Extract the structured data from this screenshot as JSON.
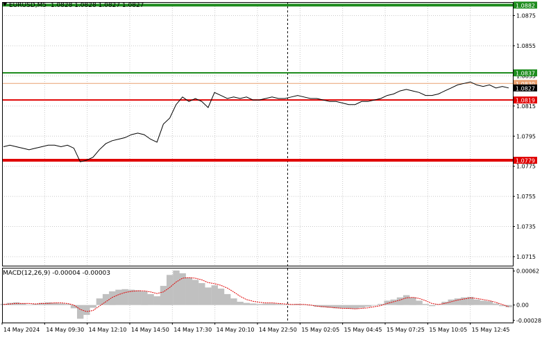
{
  "header": {
    "symbol": "EURUSD,M5",
    "ohlc": "1.0828 1.0828 1.0827 1.0827"
  },
  "macd": {
    "label": "MACD(12,26,9) -0.00004 -0.00003",
    "axis_labels": [
      "0.00062",
      "0.00",
      "-0.00028"
    ]
  },
  "colors": {
    "green_level": "#1e8c1e",
    "red_level": "#e00000",
    "orange_level": "#e8a070",
    "price_line": "#000000",
    "histogram": "#c0c0c0",
    "signal": "#e00000",
    "grid": "#c8c8c8"
  },
  "chart_data": [
    {
      "type": "line",
      "title": "",
      "x_tick_labels": [
        "14 May 2024",
        "14 May 09:30",
        "14 May 12:10",
        "14 May 14:50",
        "14 May 17:30",
        "14 May 20:10",
        "14 May 22:50",
        "15 May 02:05",
        "15 May 04:45",
        "15 May 07:25",
        "15 May 10:05",
        "15 May 12:45"
      ],
      "y_tick_labels": [
        "1.0875",
        "1.0855",
        "1.0835",
        "1.0815",
        "1.0795",
        "1.0775",
        "1.0755",
        "1.0735",
        "1.0715"
      ],
      "ylim": [
        1.0709,
        1.0884
      ],
      "grid": true,
      "levels": [
        {
          "value": 1.0882,
          "label": "1.0882",
          "color": "green"
        },
        {
          "value": 1.0837,
          "label": "1.0837",
          "color": "green"
        },
        {
          "value": 1.083,
          "label": "1.0830",
          "color": "orange"
        },
        {
          "value": 1.0819,
          "label": "1.0819",
          "color": "red"
        },
        {
          "value": 1.0779,
          "label": "1.0779",
          "color": "red"
        }
      ],
      "current_price": {
        "value": 1.0827,
        "label": "1.0827"
      },
      "series": [
        {
          "values": [
            1.0788,
            1.0789,
            1.0788,
            1.0787,
            1.0786,
            1.0787,
            1.0788,
            1.0789,
            1.0789,
            1.0788,
            1.0789,
            1.0787,
            1.0778,
            1.0779,
            1.0781,
            1.0786,
            1.079,
            1.0792,
            1.0793,
            1.0794,
            1.0796,
            1.0797,
            1.0796,
            1.0793,
            1.0791,
            1.0803,
            1.0807,
            1.0816,
            1.0821,
            1.0818,
            1.082,
            1.0818,
            1.0814,
            1.0824,
            1.0822,
            1.082,
            1.0821,
            1.082,
            1.0821,
            1.0819,
            1.0819,
            1.082,
            1.0821,
            1.082,
            1.082,
            1.0821,
            1.0822,
            1.0821,
            1.082,
            1.082,
            1.0819,
            1.0818,
            1.0818,
            1.0817,
            1.0816,
            1.0816,
            1.0818,
            1.0818,
            1.0819,
            1.082,
            1.0822,
            1.0823,
            1.0825,
            1.0826,
            1.0825,
            1.0824,
            1.0822,
            1.0822,
            1.0823,
            1.0825,
            1.0827,
            1.0829,
            1.083,
            1.0831,
            1.0829,
            1.0828,
            1.0829,
            1.0827,
            1.0828,
            1.0827
          ]
        }
      ]
    },
    {
      "type": "bar",
      "title": "MACD(12,26,9)",
      "y_tick_labels": [
        "0.00062",
        "0.00",
        "-0.00028"
      ],
      "ylim": [
        -0.00032,
        0.00068
      ],
      "series": [
        {
          "name": "MACD",
          "values": [
            2e-05,
            4e-05,
            5e-05,
            3e-05,
            1e-05,
            2e-05,
            4e-05,
            5e-05,
            4e-05,
            3e-05,
            2e-05,
            -6e-05,
            -0.00025,
            -0.00018,
            -5e-05,
            0.00012,
            0.0002,
            0.00025,
            0.00028,
            0.00029,
            0.00028,
            0.00027,
            0.00025,
            0.0002,
            0.00016,
            0.00035,
            0.00055,
            0.00063,
            0.00058,
            0.0005,
            0.00046,
            0.0004,
            0.00032,
            0.00036,
            0.0003,
            0.0002,
            0.00012,
            6e-05,
            4e-05,
            3e-05,
            2e-05,
            3e-05,
            3e-05,
            2e-05,
            1e-05,
            1e-05,
            2e-05,
            1e-05,
            -1e-05,
            -3e-05,
            -4e-05,
            -5e-05,
            -6e-05,
            -6e-05,
            -7e-05,
            -7e-05,
            -5e-05,
            -3e-05,
            -1e-05,
            2e-05,
            8e-05,
            0.0001,
            0.00014,
            0.00018,
            0.00014,
            8e-05,
            2e-05,
            -2e-05,
            1e-05,
            6e-05,
            0.0001,
            0.00012,
            0.00014,
            0.00015,
            0.0001,
            8e-05,
            7e-05,
            3e-05,
            -2e-05,
            -4e-05
          ]
        },
        {
          "name": "Signal",
          "values": [
            1e-05,
            2e-05,
            3e-05,
            3e-05,
            3e-05,
            2e-05,
            3e-05,
            3e-05,
            4e-05,
            4e-05,
            3e-05,
            0.0,
            -8e-05,
            -0.00012,
            -0.0001,
            -2e-05,
            6e-05,
            0.00014,
            0.00019,
            0.00023,
            0.00025,
            0.00026,
            0.00026,
            0.00024,
            0.00021,
            0.00024,
            0.00032,
            0.00042,
            0.00049,
            0.0005,
            0.00049,
            0.00046,
            0.00041,
            0.00039,
            0.00036,
            0.00031,
            0.00024,
            0.00016,
            0.0001,
            7e-05,
            5e-05,
            4e-05,
            4e-05,
            3e-05,
            2e-05,
            1e-05,
            1e-05,
            1e-05,
            0.0,
            -2e-05,
            -3e-05,
            -4e-05,
            -5e-05,
            -6e-05,
            -6e-05,
            -7e-05,
            -6e-05,
            -5e-05,
            -3e-05,
            -1e-05,
            3e-05,
            6e-05,
            9e-05,
            0.00013,
            0.00014,
            0.00012,
            8e-05,
            3e-05,
            1e-05,
            3e-05,
            6e-05,
            9e-05,
            0.00011,
            0.00013,
            0.00012,
            0.0001,
            8e-05,
            5e-05,
            1e-05,
            -3e-05
          ]
        }
      ]
    }
  ]
}
